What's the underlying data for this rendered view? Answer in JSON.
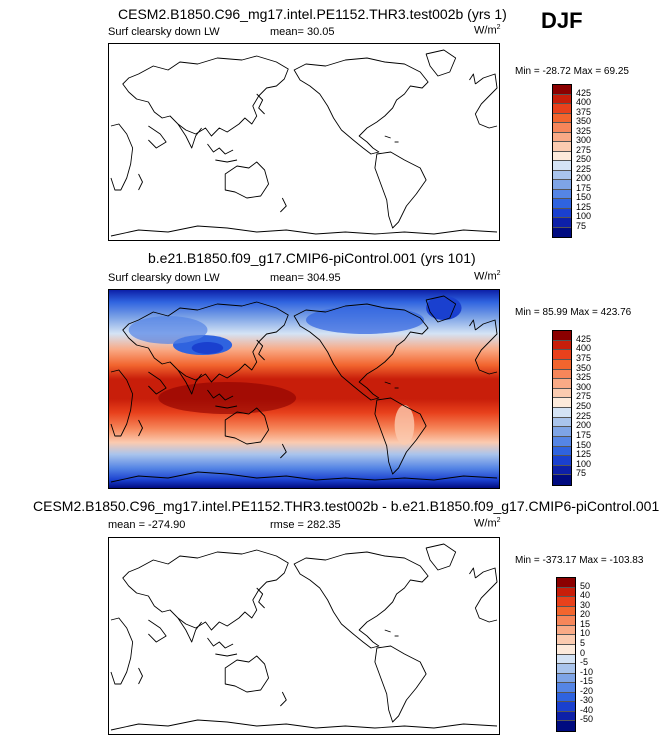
{
  "season": "DJF",
  "chart_data": [
    {
      "type": "heatmap",
      "title": "CESM2.B1850.C96_mg17.intel.PE1152.THR3.test002b (yrs 1)",
      "variable": "Surf clearsky down LW",
      "stat_left": "",
      "stat_mid": "mean=  30.05",
      "units": "W/m",
      "units_sup": "2",
      "minmax": "Min = -28.72 Max =  69.25",
      "colorbar_levels": [
        "425",
        "400",
        "375",
        "350",
        "325",
        "300",
        "275",
        "250",
        "225",
        "200",
        "175",
        "150",
        "125",
        "100",
        "75"
      ],
      "colorbar_colors": [
        "#8b0000",
        "#c81e0a",
        "#e8411c",
        "#f2652e",
        "#f6865a",
        "#f9aa86",
        "#fbcbb0",
        "#fdeadb",
        "#d4e3f5",
        "#a9c4ec",
        "#7ea4e6",
        "#5585e5",
        "#2f63df",
        "#1a40cf",
        "#0d20a8",
        "#000b80"
      ],
      "field_filled": false
    },
    {
      "type": "heatmap",
      "title": "b.e21.B1850.f09_g17.CMIP6-piControl.001 (yrs 101)",
      "variable": "Surf clearsky down LW",
      "stat_left": "",
      "stat_mid": "mean= 304.95",
      "units": "W/m",
      "units_sup": "2",
      "minmax": "Min =  85.99 Max = 423.76",
      "colorbar_levels": [
        "425",
        "400",
        "375",
        "350",
        "325",
        "300",
        "275",
        "250",
        "225",
        "200",
        "175",
        "150",
        "125",
        "100",
        "75"
      ],
      "colorbar_colors": [
        "#8b0000",
        "#c81e0a",
        "#e8411c",
        "#f2652e",
        "#f6865a",
        "#f9aa86",
        "#fbcbb0",
        "#fdeadb",
        "#d4e3f5",
        "#a9c4ec",
        "#7ea4e6",
        "#5585e5",
        "#2f63df",
        "#1a40cf",
        "#0d20a8",
        "#000b80"
      ],
      "field_filled": true
    },
    {
      "type": "heatmap",
      "title": "CESM2.B1850.C96_mg17.intel.PE1152.THR3.test002b - b.e21.B1850.f09_g17.CMIP6-piControl.001",
      "variable": "",
      "stat_left": "mean = -274.90",
      "stat_mid": "rmse = 282.35",
      "units": "W/m",
      "units_sup": "2",
      "minmax": "Min = -373.17 Max = -103.83",
      "colorbar_levels": [
        "50",
        "40",
        "30",
        "20",
        "15",
        "10",
        "5",
        "0",
        "-5",
        "-10",
        "-15",
        "-20",
        "-30",
        "-40",
        "-50"
      ],
      "colorbar_colors": [
        "#8b0000",
        "#c81e0a",
        "#e8411c",
        "#f2652e",
        "#f6865a",
        "#f9aa86",
        "#fbcbb0",
        "#fdeadb",
        "#d4e3f5",
        "#a9c4ec",
        "#7ea4e6",
        "#5585e5",
        "#2f63df",
        "#1a40cf",
        "#0d20a8",
        "#000b80"
      ],
      "field_filled": false
    }
  ]
}
